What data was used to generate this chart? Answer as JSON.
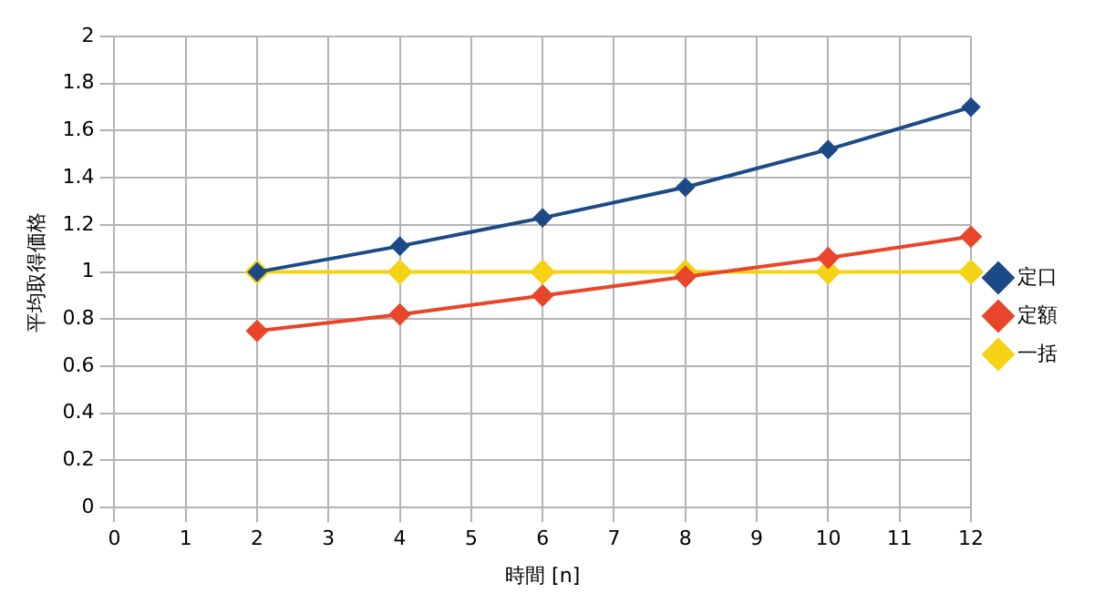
{
  "chart_data": {
    "type": "line",
    "xlabel": "時間 [n]",
    "ylabel": "平均取得価格",
    "xlim": [
      0,
      12
    ],
    "xticks": [
      0,
      1,
      2,
      3,
      4,
      5,
      6,
      7,
      8,
      9,
      10,
      11,
      12
    ],
    "ylim": [
      0,
      2
    ],
    "yticks": [
      0,
      0.2,
      0.4,
      0.6,
      0.8,
      1,
      1.2,
      1.4,
      1.6,
      1.8,
      2
    ],
    "grid": true,
    "legend": "right",
    "marker": "diamond",
    "line_style": "solid",
    "x": [
      2,
      4,
      6,
      8,
      10,
      12
    ],
    "series": [
      {
        "name": "定口",
        "color": "#1c4a87",
        "values": [
          1.0,
          1.11,
          1.23,
          1.36,
          1.52,
          1.7
        ]
      },
      {
        "name": "定額",
        "color": "#e8462a",
        "values": [
          0.75,
          0.82,
          0.9,
          0.98,
          1.06,
          1.15
        ]
      },
      {
        "name": "一括",
        "color": "#f5d215",
        "values": [
          1,
          1,
          1,
          1,
          1,
          1
        ]
      }
    ]
  }
}
